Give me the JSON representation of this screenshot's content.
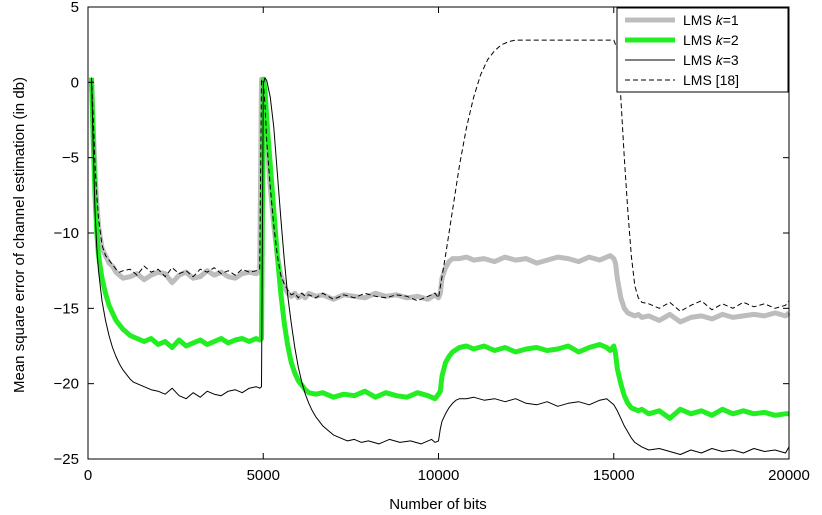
{
  "chart_data": {
    "type": "line",
    "title": "",
    "xlabel": "Number of bits",
    "ylabel": "Mean square error of channel estimation (in db)",
    "xlim": [
      0,
      20000
    ],
    "ylim": [
      -25,
      5
    ],
    "xticks": [
      0,
      5000,
      10000,
      15000,
      20000
    ],
    "yticks": [
      -25,
      -20,
      -15,
      -10,
      -5,
      0,
      5
    ],
    "grid": false,
    "legend_position": "top-right",
    "series": [
      {
        "name": "LMS k=1",
        "legend_label": {
          "prefix": "LMS ",
          "italic": "k",
          "suffix": "=1"
        },
        "color": "#bdbdbd",
        "style": "solid-thick",
        "x": [
          100,
          150,
          200,
          250,
          300,
          400,
          500,
          600,
          700,
          800,
          900,
          1000,
          1200,
          1400,
          1600,
          1800,
          2000,
          2200,
          2400,
          2600,
          2800,
          3000,
          3200,
          3400,
          3600,
          3800,
          4000,
          4200,
          4400,
          4600,
          4800,
          4900,
          4950,
          5000,
          5050,
          5100,
          5200,
          5300,
          5400,
          5500,
          5600,
          5700,
          5800,
          5900,
          6000,
          6100,
          6200,
          6300,
          6500,
          6700,
          7000,
          7300,
          7600,
          7900,
          8200,
          8500,
          8800,
          9100,
          9400,
          9700,
          9900,
          10000,
          10050,
          10100,
          10200,
          10300,
          10400,
          10600,
          10800,
          11000,
          11300,
          11600,
          11900,
          12200,
          12500,
          12800,
          13100,
          13400,
          13700,
          14000,
          14300,
          14600,
          14900,
          15000,
          15050,
          15100,
          15200,
          15300,
          15400,
          15500,
          15600,
          15700,
          15800,
          16000,
          16300,
          16600,
          16900,
          17200,
          17500,
          17800,
          18100,
          18400,
          18700,
          19000,
          19300,
          19600,
          19900,
          20000
        ],
        "y": [
          0.3,
          -3.0,
          -6.0,
          -8.0,
          -9.5,
          -11.0,
          -11.5,
          -12.0,
          -12.2,
          -12.6,
          -12.8,
          -13.0,
          -12.9,
          -12.7,
          -13.1,
          -12.8,
          -12.6,
          -12.7,
          -13.3,
          -12.8,
          -12.6,
          -13.0,
          -12.9,
          -12.5,
          -12.8,
          -12.6,
          -12.9,
          -13.0,
          -12.7,
          -12.6,
          -12.7,
          -12.5,
          0.2,
          0.0,
          -1.5,
          -4.0,
          -7.0,
          -9.5,
          -11.5,
          -12.8,
          -13.6,
          -14.0,
          -14.2,
          -14.0,
          -14.3,
          -14.1,
          -14.3,
          -14.0,
          -14.2,
          -14.1,
          -14.4,
          -14.1,
          -14.2,
          -14.3,
          -14.0,
          -14.2,
          -14.1,
          -14.3,
          -14.2,
          -14.4,
          -14.1,
          -14.3,
          -14.0,
          -13.0,
          -12.3,
          -11.9,
          -11.7,
          -11.7,
          -11.6,
          -11.8,
          -11.7,
          -11.9,
          -11.6,
          -11.8,
          -11.7,
          -12.0,
          -11.8,
          -11.6,
          -11.7,
          -11.9,
          -11.6,
          -11.8,
          -11.5,
          -11.7,
          -12.0,
          -13.0,
          -14.3,
          -15.0,
          -15.3,
          -15.4,
          -15.5,
          -15.4,
          -15.6,
          -15.5,
          -15.8,
          -15.4,
          -15.9,
          -15.6,
          -15.5,
          -15.7,
          -15.4,
          -15.6,
          -15.5,
          -15.4,
          -15.5,
          -15.3,
          -15.5,
          -15.3
        ]
      },
      {
        "name": "LMS k=2",
        "legend_label": {
          "prefix": "LMS ",
          "italic": "k",
          "suffix": "=2"
        },
        "color": "#22ee22",
        "style": "solid-thick",
        "x": [
          100,
          150,
          200,
          250,
          300,
          400,
          500,
          600,
          700,
          800,
          900,
          1000,
          1100,
          1200,
          1300,
          1400,
          1500,
          1600,
          1800,
          2000,
          2200,
          2400,
          2600,
          2800,
          3000,
          3200,
          3400,
          3600,
          3800,
          4000,
          4200,
          4400,
          4600,
          4800,
          4900,
          4950,
          5000,
          5050,
          5100,
          5200,
          5300,
          5400,
          5500,
          5600,
          5700,
          5800,
          5900,
          6000,
          6100,
          6200,
          6300,
          6500,
          6700,
          7000,
          7300,
          7600,
          7900,
          8200,
          8500,
          8800,
          9100,
          9400,
          9700,
          9900,
          10000,
          10050,
          10100,
          10200,
          10300,
          10400,
          10600,
          10800,
          11000,
          11300,
          11600,
          11900,
          12200,
          12500,
          12800,
          13100,
          13400,
          13700,
          14000,
          14300,
          14600,
          14800,
          14900,
          15000,
          15050,
          15100,
          15200,
          15300,
          15400,
          15500,
          15600,
          15700,
          15800,
          16000,
          16300,
          16600,
          16900,
          17200,
          17500,
          17800,
          18100,
          18400,
          18700,
          19000,
          19300,
          19600,
          19900,
          20000
        ],
        "y": [
          0.3,
          -4.0,
          -7.5,
          -10.0,
          -11.5,
          -13.0,
          -14.0,
          -14.8,
          -15.3,
          -15.8,
          -16.1,
          -16.4,
          -16.6,
          -16.8,
          -16.9,
          -17.0,
          -17.1,
          -17.2,
          -17.0,
          -17.4,
          -17.2,
          -17.6,
          -17.1,
          -17.5,
          -17.3,
          -17.1,
          -17.4,
          -17.2,
          -17.0,
          -17.3,
          -17.1,
          -17.0,
          -17.2,
          -17.0,
          -17.1,
          -17.0,
          0.2,
          -0.5,
          -2.5,
          -5.5,
          -8.5,
          -11.5,
          -14.0,
          -16.0,
          -17.5,
          -18.6,
          -19.3,
          -19.8,
          -20.1,
          -20.4,
          -20.6,
          -20.7,
          -20.6,
          -20.9,
          -20.7,
          -20.8,
          -20.5,
          -20.9,
          -20.6,
          -20.8,
          -20.9,
          -20.6,
          -20.8,
          -21.0,
          -20.7,
          -20.5,
          -19.5,
          -18.6,
          -18.2,
          -17.9,
          -17.6,
          -17.5,
          -17.7,
          -17.5,
          -17.8,
          -17.6,
          -17.9,
          -17.7,
          -17.6,
          -17.8,
          -17.7,
          -17.5,
          -17.9,
          -17.6,
          -17.4,
          -17.6,
          -17.8,
          -17.5,
          -18.0,
          -19.0,
          -20.0,
          -20.8,
          -21.3,
          -21.6,
          -21.7,
          -21.8,
          -21.7,
          -22.0,
          -21.8,
          -22.3,
          -21.7,
          -22.0,
          -21.8,
          -22.1,
          -21.7,
          -22.0,
          -21.8,
          -22.0,
          -21.9,
          -22.1,
          -22.0,
          -22.0
        ]
      },
      {
        "name": "LMS k=3",
        "legend_label": {
          "prefix": "LMS ",
          "italic": "k",
          "suffix": "=3"
        },
        "color": "#000000",
        "style": "solid-thin",
        "x": [
          100,
          150,
          200,
          250,
          300,
          400,
          500,
          600,
          700,
          800,
          900,
          1000,
          1100,
          1200,
          1300,
          1400,
          1500,
          1600,
          1700,
          1800,
          2000,
          2200,
          2400,
          2600,
          2800,
          3000,
          3200,
          3400,
          3600,
          3800,
          4000,
          4200,
          4400,
          4600,
          4800,
          4900,
          4950,
          5000,
          5050,
          5100,
          5200,
          5300,
          5400,
          5500,
          5600,
          5700,
          5800,
          5900,
          6000,
          6100,
          6200,
          6300,
          6400,
          6500,
          6600,
          6700,
          6800,
          6900,
          7000,
          7200,
          7400,
          7600,
          7800,
          8000,
          8300,
          8600,
          8900,
          9200,
          9500,
          9800,
          9900,
          10000,
          10050,
          10100,
          10200,
          10300,
          10400,
          10500,
          10600,
          10800,
          11000,
          11300,
          11600,
          11900,
          12200,
          12500,
          12800,
          13100,
          13400,
          13700,
          14000,
          14300,
          14600,
          14800,
          14900,
          15000,
          15100,
          15200,
          15300,
          15400,
          15500,
          15600,
          15800,
          16000,
          16300,
          16600,
          16900,
          17200,
          17500,
          17800,
          18100,
          18400,
          18700,
          19000,
          19300,
          19600,
          19900,
          20000
        ],
        "y": [
          0.3,
          -4.5,
          -8.5,
          -11.0,
          -12.5,
          -14.5,
          -15.8,
          -16.8,
          -17.6,
          -18.2,
          -18.7,
          -19.1,
          -19.4,
          -19.7,
          -19.9,
          -20.0,
          -20.1,
          -20.2,
          -20.3,
          -20.4,
          -20.5,
          -20.7,
          -20.3,
          -20.8,
          -21.0,
          -20.6,
          -20.9,
          -20.5,
          -20.7,
          -20.8,
          -20.5,
          -20.4,
          -20.6,
          -20.3,
          -20.2,
          -20.3,
          -20.2,
          -0.1,
          0.3,
          0.1,
          -1.0,
          -3.0,
          -6.0,
          -9.0,
          -11.8,
          -14.2,
          -16.0,
          -17.6,
          -18.9,
          -19.9,
          -20.7,
          -21.3,
          -21.8,
          -22.2,
          -22.5,
          -22.8,
          -23.0,
          -23.2,
          -23.4,
          -23.6,
          -23.8,
          -23.7,
          -23.9,
          -23.8,
          -24.0,
          -23.7,
          -23.9,
          -23.8,
          -24.0,
          -23.7,
          -23.9,
          -23.8,
          -23.0,
          -22.5,
          -22.0,
          -21.6,
          -21.3,
          -21.1,
          -21.0,
          -21.0,
          -20.9,
          -21.1,
          -21.0,
          -21.2,
          -21.0,
          -21.3,
          -21.4,
          -21.2,
          -21.5,
          -21.3,
          -21.2,
          -21.4,
          -21.1,
          -21.0,
          -21.2,
          -21.4,
          -21.8,
          -22.3,
          -22.8,
          -23.2,
          -23.6,
          -23.9,
          -24.2,
          -24.4,
          -24.3,
          -24.5,
          -24.7,
          -24.4,
          -24.6,
          -24.3,
          -24.5,
          -24.4,
          -24.6,
          -24.3,
          -24.5,
          -24.4,
          -24.6,
          -24.2
        ]
      },
      {
        "name": "LMS [18]",
        "legend_label": {
          "prefix": "LMS [18]",
          "italic": "",
          "suffix": ""
        },
        "color": "#000000",
        "style": "dashed",
        "x": [
          100,
          150,
          200,
          250,
          300,
          400,
          500,
          600,
          700,
          800,
          900,
          1000,
          1200,
          1400,
          1600,
          1800,
          2000,
          2200,
          2400,
          2600,
          2800,
          3000,
          3200,
          3400,
          3600,
          3800,
          4000,
          4200,
          4400,
          4600,
          4800,
          4900,
          4950,
          5000,
          5050,
          5100,
          5200,
          5300,
          5400,
          5500,
          5600,
          5700,
          5800,
          5900,
          6000,
          6100,
          6200,
          6300,
          6500,
          6700,
          7000,
          7300,
          7600,
          7900,
          8200,
          8500,
          8800,
          9100,
          9400,
          9700,
          9900,
          10000,
          10200,
          10400,
          10600,
          10800,
          11000,
          11200,
          11400,
          11600,
          11800,
          12000,
          12200,
          12400,
          12600,
          12800,
          13000,
          13300,
          13600,
          13900,
          14200,
          14500,
          14800,
          15000,
          15100,
          15200,
          15300,
          15400,
          15500,
          15600,
          15700,
          15800,
          16000,
          16300,
          16600,
          16900,
          17200,
          17500,
          17800,
          18100,
          18400,
          18700,
          19000,
          19300,
          19600,
          19900,
          20000
        ],
        "y": [
          0.3,
          -2.5,
          -5.5,
          -7.5,
          -9.0,
          -10.8,
          -11.5,
          -11.8,
          -12.1,
          -12.4,
          -12.6,
          -12.5,
          -12.4,
          -12.8,
          -12.2,
          -12.6,
          -12.4,
          -12.9,
          -12.3,
          -12.7,
          -12.5,
          -12.9,
          -12.4,
          -12.6,
          -12.3,
          -12.7,
          -12.5,
          -12.8,
          -12.4,
          -12.6,
          -12.5,
          -12.4,
          0.2,
          0.0,
          -1.5,
          -4.0,
          -7.0,
          -9.5,
          -11.5,
          -12.8,
          -13.4,
          -13.8,
          -14.1,
          -14.0,
          -14.3,
          -14.0,
          -14.2,
          -14.1,
          -14.3,
          -14.0,
          -14.4,
          -14.1,
          -14.3,
          -14.0,
          -14.2,
          -14.3,
          -14.1,
          -14.2,
          -14.5,
          -14.2,
          -14.0,
          -14.3,
          -11.5,
          -8.5,
          -5.5,
          -3.0,
          -1.0,
          0.5,
          1.5,
          2.1,
          2.5,
          2.7,
          2.8,
          2.8,
          2.8,
          2.8,
          2.8,
          2.8,
          2.8,
          2.8,
          2.8,
          2.8,
          2.8,
          2.8,
          2.2,
          -1.0,
          -5.0,
          -8.5,
          -11.5,
          -13.5,
          -14.3,
          -14.6,
          -14.7,
          -15.0,
          -14.6,
          -15.2,
          -14.8,
          -14.5,
          -15.1,
          -14.7,
          -15.0,
          -14.6,
          -14.9,
          -14.7,
          -15.0,
          -14.8,
          -14.5
        ]
      }
    ]
  }
}
